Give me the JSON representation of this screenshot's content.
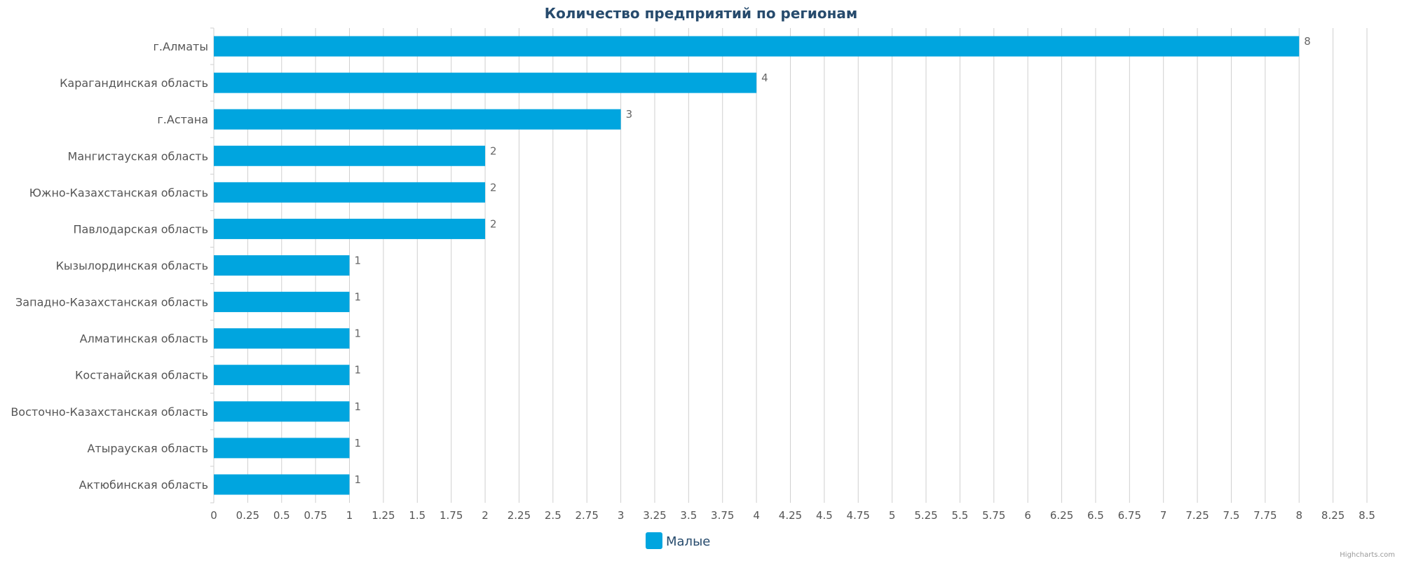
{
  "colors": {
    "bar": "#00a5df",
    "title": "#274b6d",
    "axis_label": "#555555",
    "data_label": "#666666",
    "grid": "#cfcfcf",
    "legend_text": "#274b6d",
    "credits": "#999999"
  },
  "credits": "Highcharts.com",
  "chart_data": {
    "type": "bar",
    "orientation": "horizontal",
    "title": "Количество предприятий по регионам",
    "categories": [
      "г.Алматы",
      "Карагандинская область",
      "г.Астана",
      "Мангистауская область",
      "Южно-Казахстанская область",
      "Павлодарская область",
      "Кызылординская область",
      "Западно-Казахстанская область",
      "Алматинская область",
      "Костанайская область",
      "Восточно-Казахстанская область",
      "Атырауская область",
      "Актюбинская область"
    ],
    "series": [
      {
        "name": "Малые",
        "values": [
          8,
          4,
          3,
          2,
          2,
          2,
          1,
          1,
          1,
          1,
          1,
          1,
          1
        ]
      }
    ],
    "xlim": [
      0,
      8.5
    ],
    "tick_step": 0.25,
    "tick_labels": [
      "0",
      "0.25",
      "0.5",
      "0.75",
      "1",
      "1.25",
      "1.5",
      "1.75",
      "2",
      "2.25",
      "2.5",
      "2.75",
      "3",
      "3.25",
      "3.5",
      "3.75",
      "4",
      "4.25",
      "4.5",
      "4.75",
      "5",
      "5.25",
      "5.5",
      "5.75",
      "6",
      "6.25",
      "6.5",
      "6.75",
      "7",
      "7.25",
      "7.5",
      "7.75",
      "8",
      "8.25",
      "8.5"
    ],
    "grid": true,
    "data_labels": true,
    "legend_position": "bottom-center"
  }
}
